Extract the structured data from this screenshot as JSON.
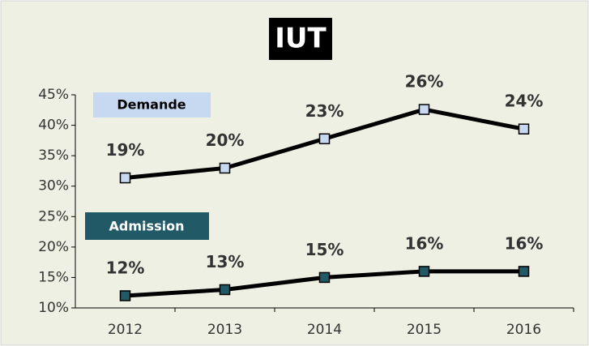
{
  "chart_data": {
    "type": "line",
    "title": "IUT",
    "categories": [
      "2012",
      "2013",
      "2014",
      "2015",
      "2016"
    ],
    "ylim": [
      10,
      45
    ],
    "yticks": [
      {
        "value": 10,
        "label": "10%"
      },
      {
        "value": 15,
        "label": "15%"
      },
      {
        "value": 20,
        "label": "20%"
      },
      {
        "value": 25,
        "label": "25%"
      },
      {
        "value": 30,
        "label": "30%"
      },
      {
        "value": 35,
        "label": "35%"
      },
      {
        "value": 40,
        "label": "40%"
      },
      {
        "value": 45,
        "label": "45%"
      }
    ],
    "y2lim": [
      5.7,
      27.5
    ],
    "series": [
      {
        "name": "Demande",
        "color": "#c6d9f1",
        "axis": "y2",
        "values": [
          19,
          20,
          23,
          26,
          24
        ],
        "value_labels": [
          "19%",
          "20%",
          "23%",
          "26%",
          "24%"
        ]
      },
      {
        "name": "Admission",
        "color": "#215967",
        "values": [
          12,
          13,
          15,
          16,
          16
        ],
        "value_labels": [
          "12%",
          "13%",
          "15%",
          "16%",
          "16%"
        ]
      }
    ]
  }
}
